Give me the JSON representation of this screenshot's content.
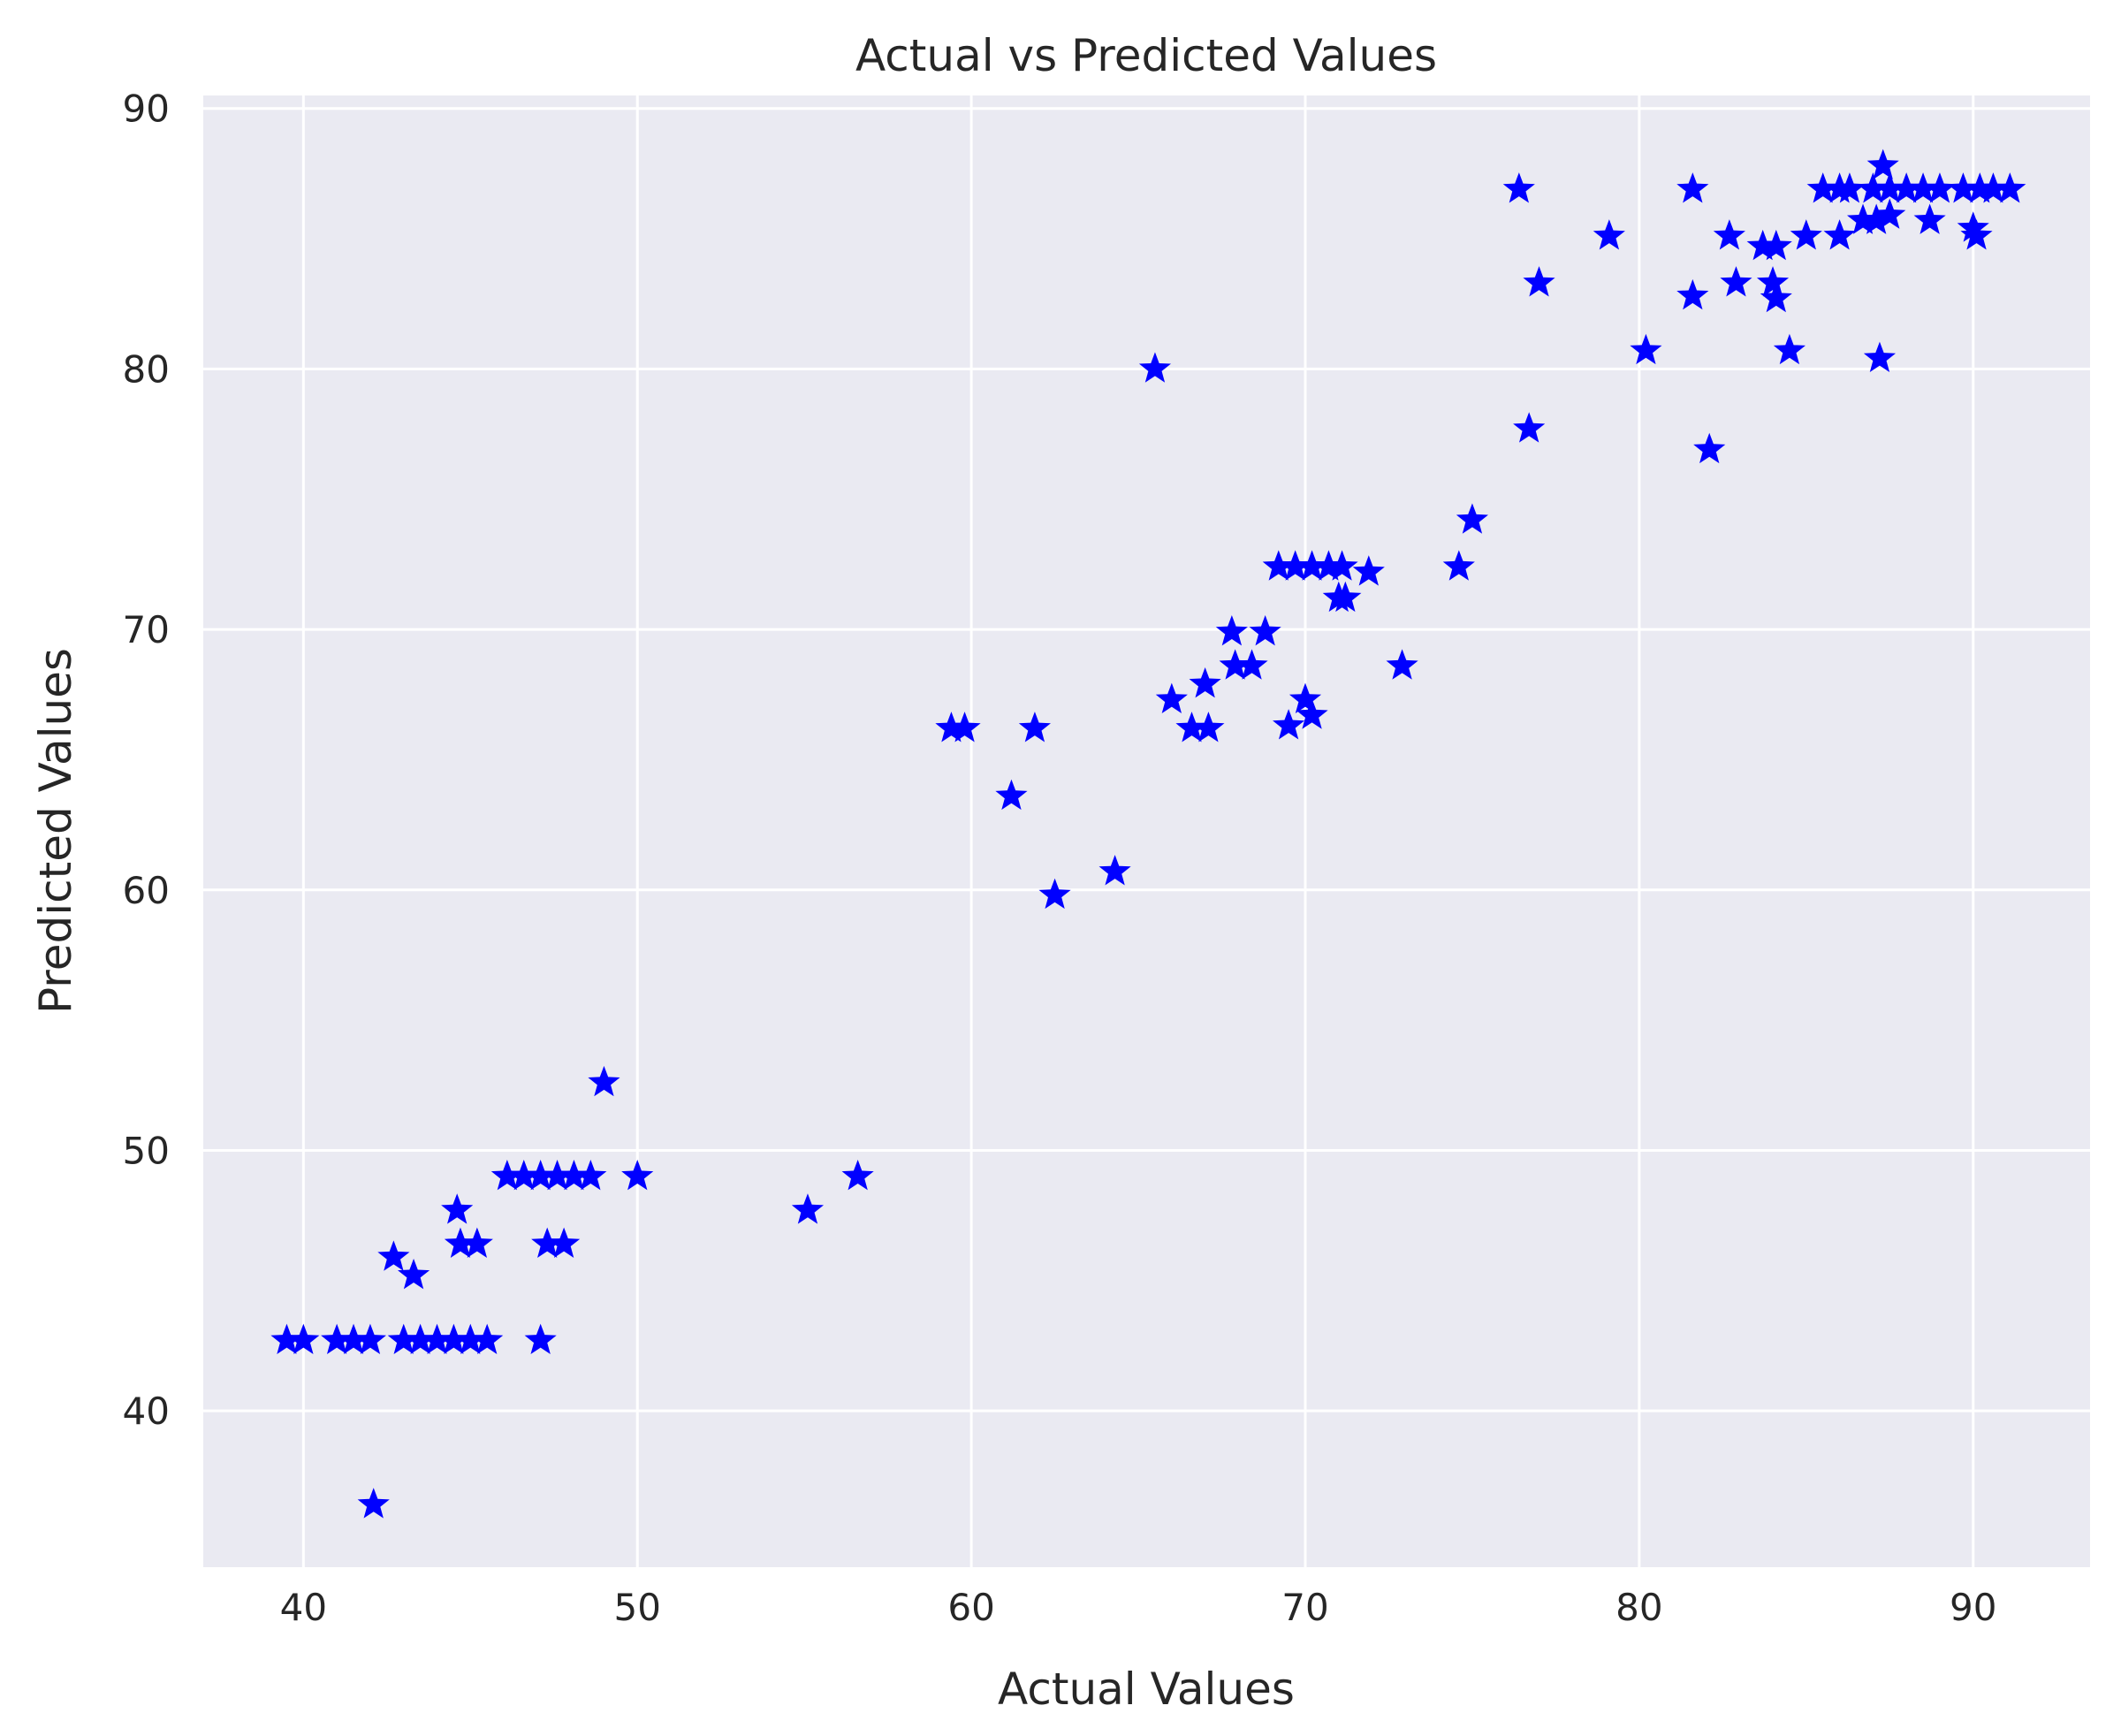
{
  "chart_data": {
    "type": "scatter",
    "title": "Actual vs Predicted Values",
    "xlabel": "Actual Values",
    "ylabel": "Predicted Values",
    "xlim": [
      37,
      93.5
    ],
    "ylim": [
      34,
      90.5
    ],
    "xticks": [
      40,
      50,
      60,
      70,
      80,
      90
    ],
    "yticks": [
      40,
      50,
      60,
      70,
      80,
      90
    ],
    "grid": true,
    "background_color": "#eaeaf2",
    "grid_color": "#ffffff",
    "marker": "star",
    "marker_color": "#0000ff",
    "series": [
      {
        "points": [
          [
            39.5,
            42.7
          ],
          [
            40.0,
            42.7
          ],
          [
            41.0,
            42.7
          ],
          [
            41.5,
            42.7
          ],
          [
            42.0,
            42.7
          ],
          [
            43.0,
            42.7
          ],
          [
            43.5,
            42.7
          ],
          [
            44.0,
            42.7
          ],
          [
            44.5,
            42.7
          ],
          [
            45.0,
            42.7
          ],
          [
            45.5,
            42.7
          ],
          [
            47.1,
            42.7
          ],
          [
            42.1,
            36.4
          ],
          [
            42.7,
            45.9
          ],
          [
            43.3,
            45.2
          ],
          [
            44.6,
            47.7
          ],
          [
            44.7,
            46.4
          ],
          [
            45.2,
            46.4
          ],
          [
            47.3,
            46.4
          ],
          [
            47.8,
            46.4
          ],
          [
            46.1,
            49.0
          ],
          [
            46.6,
            49.0
          ],
          [
            47.1,
            49.0
          ],
          [
            47.6,
            49.0
          ],
          [
            48.1,
            49.0
          ],
          [
            48.6,
            49.0
          ],
          [
            49.0,
            52.6
          ],
          [
            50.0,
            49.0
          ],
          [
            55.1,
            47.7
          ],
          [
            56.6,
            49.0
          ],
          [
            59.4,
            66.2
          ],
          [
            59.8,
            66.2
          ],
          [
            61.9,
            66.2
          ],
          [
            61.2,
            63.6
          ],
          [
            62.5,
            59.8
          ],
          [
            64.3,
            60.7
          ],
          [
            65.5,
            80.0
          ],
          [
            66.0,
            67.3
          ],
          [
            66.6,
            66.2
          ],
          [
            67.1,
            66.2
          ],
          [
            67.0,
            67.9
          ],
          [
            67.8,
            69.9
          ],
          [
            67.9,
            68.6
          ],
          [
            68.4,
            68.6
          ],
          [
            68.8,
            69.9
          ],
          [
            69.2,
            72.4
          ],
          [
            69.7,
            72.4
          ],
          [
            70.2,
            72.4
          ],
          [
            70.7,
            72.4
          ],
          [
            71.1,
            72.4
          ],
          [
            71.9,
            72.2
          ],
          [
            71.0,
            71.2
          ],
          [
            71.2,
            71.2
          ],
          [
            69.5,
            66.3
          ],
          [
            70.0,
            67.3
          ],
          [
            70.2,
            66.7
          ],
          [
            72.9,
            68.6
          ],
          [
            74.6,
            72.4
          ],
          [
            75.0,
            74.2
          ],
          [
            76.4,
            86.9
          ],
          [
            76.7,
            77.7
          ],
          [
            77.0,
            83.3
          ],
          [
            79.1,
            85.1
          ],
          [
            80.2,
            80.7
          ],
          [
            81.6,
            86.9
          ],
          [
            81.6,
            82.8
          ],
          [
            82.1,
            76.9
          ],
          [
            82.7,
            85.1
          ],
          [
            82.9,
            83.3
          ],
          [
            83.7,
            84.7
          ],
          [
            84.1,
            84.7
          ],
          [
            84.0,
            83.3
          ],
          [
            84.1,
            82.7
          ],
          [
            84.5,
            80.7
          ],
          [
            85.0,
            85.1
          ],
          [
            85.5,
            86.9
          ],
          [
            86.0,
            86.9
          ],
          [
            86.3,
            86.9
          ],
          [
            86.0,
            85.1
          ],
          [
            86.7,
            85.7
          ],
          [
            87.0,
            86.9
          ],
          [
            87.3,
            87.8
          ],
          [
            87.5,
            86.9
          ],
          [
            88.0,
            86.9
          ],
          [
            88.5,
            86.9
          ],
          [
            89.0,
            86.9
          ],
          [
            89.7,
            86.9
          ],
          [
            90.2,
            86.9
          ],
          [
            90.6,
            86.9
          ],
          [
            91.1,
            86.9
          ],
          [
            87.1,
            85.7
          ],
          [
            87.5,
            85.9
          ],
          [
            87.2,
            80.4
          ],
          [
            88.7,
            85.7
          ],
          [
            90.0,
            85.4
          ],
          [
            90.1,
            85.1
          ]
        ]
      }
    ]
  }
}
